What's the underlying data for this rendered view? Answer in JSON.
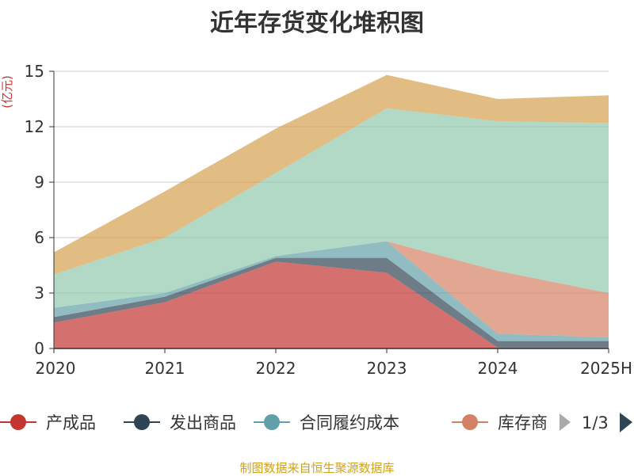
{
  "title": "近年存货变化堆积图",
  "source": "制图数据来自恒生聚源数据库",
  "legend": {
    "items": [
      "产成品",
      "发出商品",
      "合同履约成本",
      "库存商"
    ],
    "page": "1/3"
  },
  "chart_data": {
    "type": "area",
    "stacked": true,
    "title": "近年存货变化堆积图",
    "ylabel": "(亿元)",
    "categories": [
      "2020",
      "2021",
      "2022",
      "2023",
      "2024",
      "2025H"
    ],
    "ylim": [
      0,
      15
    ],
    "yticks": [
      0,
      3,
      6,
      9,
      12,
      15
    ],
    "grid": true,
    "legend_position": "bottom",
    "series": [
      {
        "name": "产成品",
        "color": "#c23531",
        "values": [
          1.4,
          2.5,
          4.7,
          4.1,
          0.05,
          0.05
        ]
      },
      {
        "name": "发出商品",
        "color": "#2f4554",
        "values": [
          0.3,
          0.3,
          0.2,
          0.8,
          0.35,
          0.35
        ]
      },
      {
        "name": "合同履约成本",
        "color": "#61a0a8",
        "values": [
          0.5,
          0.2,
          0.1,
          0.9,
          0.4,
          0.2
        ]
      },
      {
        "name": "库存商",
        "color": "#d48265",
        "values": [
          0.0,
          0.0,
          0.0,
          0.0,
          3.4,
          2.4
        ]
      },
      {
        "name": "",
        "color": "#91c7ae",
        "values": [
          1.8,
          3.0,
          4.5,
          7.2,
          8.1,
          9.2
        ]
      },
      {
        "name": "",
        "color": "#d4a04f",
        "values": [
          1.2,
          2.5,
          2.4,
          1.8,
          1.2,
          1.5
        ]
      }
    ]
  }
}
